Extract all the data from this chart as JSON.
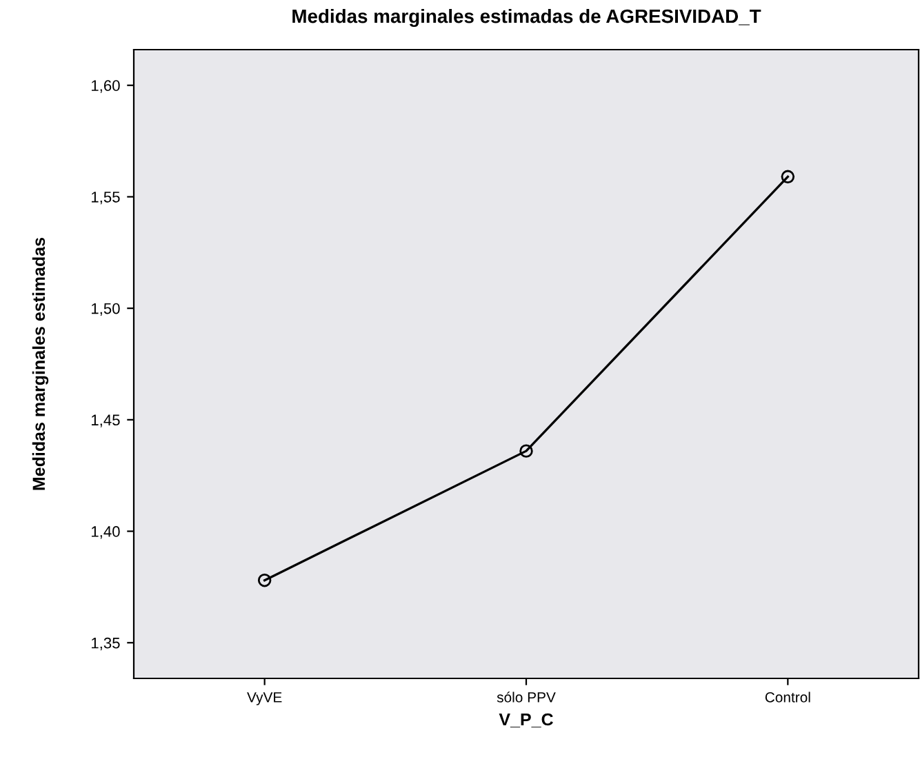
{
  "chart_data": {
    "type": "line",
    "title": "Medidas marginales estimadas de AGRESIVIDAD_T",
    "xlabel": "V_P_C",
    "ylabel": "Medidas marginales estimadas",
    "categories": [
      "VyVE",
      "sólo PPV",
      "Control"
    ],
    "series": [
      {
        "color": "#000000",
        "values": [
          1.378,
          1.436,
          1.559
        ]
      }
    ],
    "ylim": [
      1.334,
      1.616
    ],
    "yticks": [
      {
        "value": 1.35,
        "label": "1,35"
      },
      {
        "value": 1.4,
        "label": "1,40"
      },
      {
        "value": 1.45,
        "label": "1,45"
      },
      {
        "value": 1.5,
        "label": "1,50"
      },
      {
        "value": 1.55,
        "label": "1,55"
      },
      {
        "value": 1.6,
        "label": "1,60"
      }
    ],
    "grid": false,
    "legend": false,
    "marker": "circle",
    "line_style": "solid"
  }
}
